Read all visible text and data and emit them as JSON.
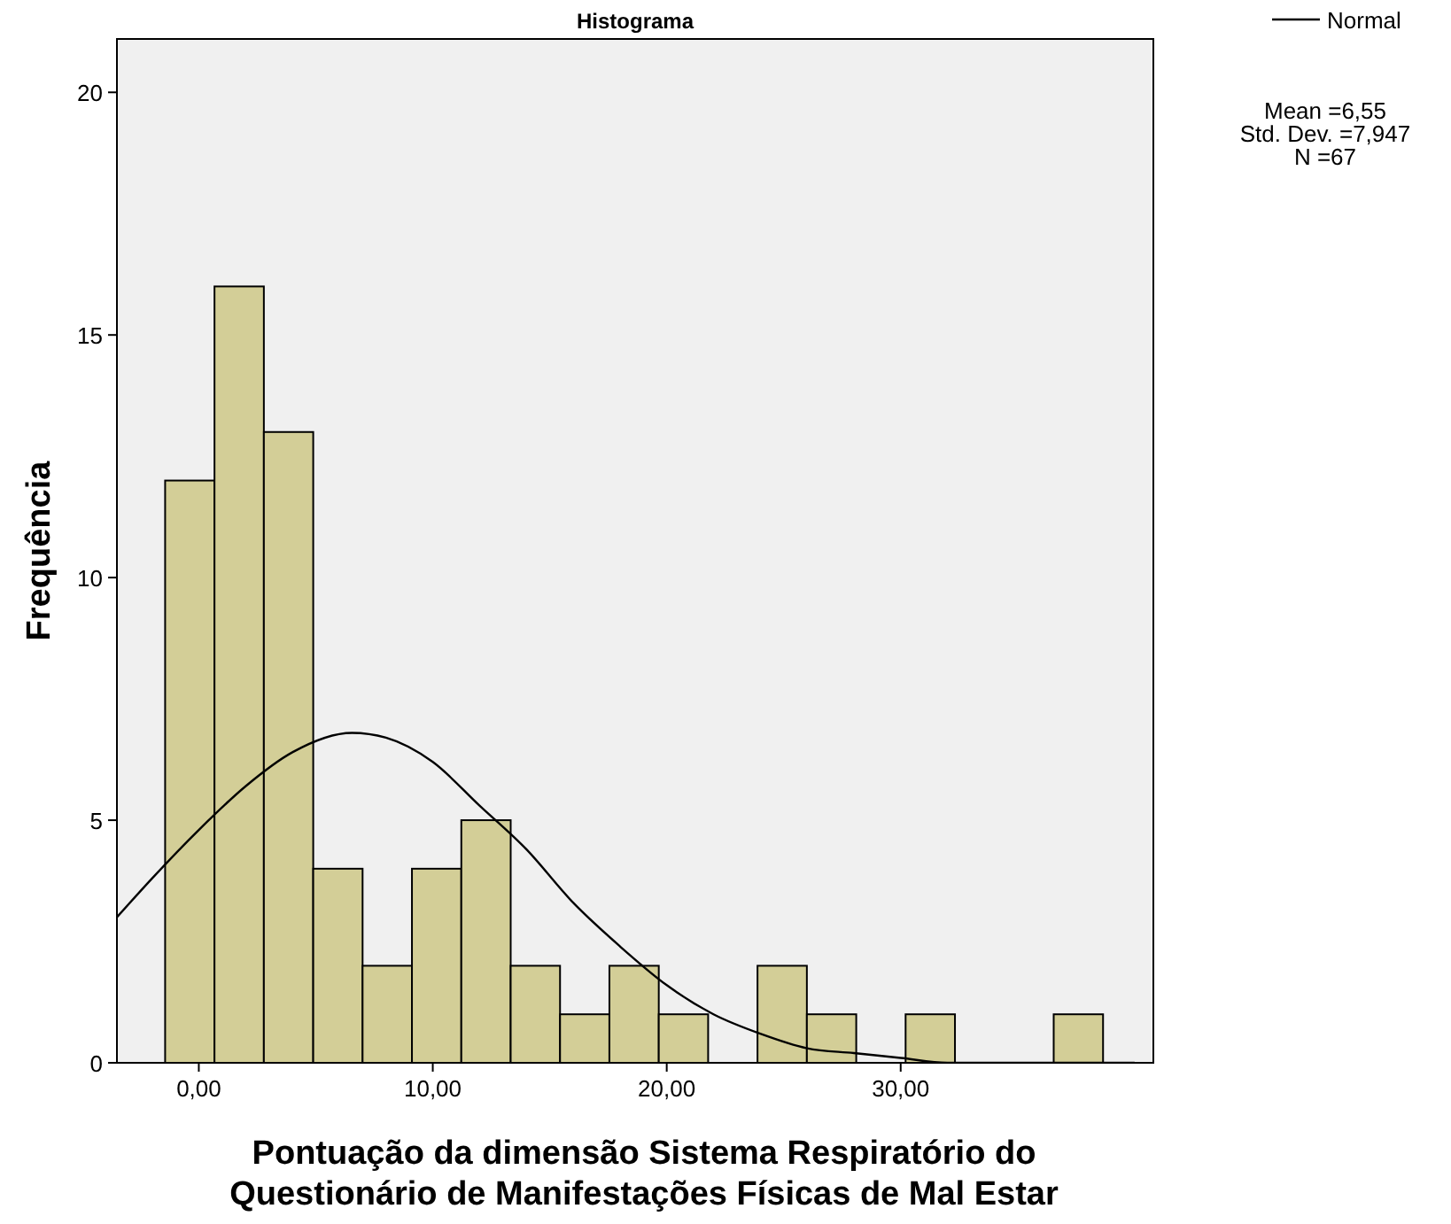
{
  "chart_data": {
    "type": "histogram",
    "title": "Histograma",
    "xlabel": "Pontuação da dimensão Sistema Respiratório do\nQuestionário de Manifestações Físicas de Mal Estar",
    "ylabel": "Frequência",
    "bins": [
      -1.44,
      0.67,
      2.78,
      4.89,
      7.0,
      9.11,
      11.22,
      13.33,
      15.44,
      17.55,
      19.66,
      21.77,
      23.88,
      25.99,
      28.1,
      30.21,
      32.32,
      34.43,
      36.54,
      38.65
    ],
    "series": [
      {
        "color": "#d3ce97",
        "values": [
          12,
          16,
          13,
          4,
          2,
          4,
          5,
          2,
          1,
          2,
          1,
          0,
          2,
          1,
          0,
          1,
          0,
          0,
          1
        ]
      },
      {
        "type": "line",
        "name": "Normal",
        "color": "#000000",
        "x": [
          -3.5,
          -2,
          0,
          2,
          4,
          6.55,
          8,
          10,
          12,
          14,
          16,
          18,
          20,
          22,
          24,
          26,
          28,
          30,
          32,
          34,
          36,
          38,
          40
        ],
        "values": [
          3.0,
          3.8,
          4.8,
          5.7,
          6.4,
          6.8,
          6.7,
          6.2,
          5.3,
          4.4,
          3.3,
          2.4,
          1.6,
          1.0,
          0.6,
          0.3,
          0.2,
          0.1,
          0.0,
          0.0,
          0.0,
          0.0,
          0.0
        ]
      }
    ],
    "xlim": [
      -3.5,
      40.8
    ],
    "ylim": [
      0,
      21.1
    ],
    "xticks": [
      {
        "value": 0,
        "label": "0,00"
      },
      {
        "value": 10,
        "label": "10,00"
      },
      {
        "value": 20,
        "label": "20,00"
      },
      {
        "value": 30,
        "label": "30,00"
      }
    ],
    "yticks": [
      0,
      5,
      10,
      15,
      20
    ],
    "grid": false,
    "legend": "top right",
    "marker": "none",
    "line_style": "solid",
    "annotations": [
      "Mean =6,55",
      "Std. Dev. =7,947",
      "N =67"
    ]
  }
}
